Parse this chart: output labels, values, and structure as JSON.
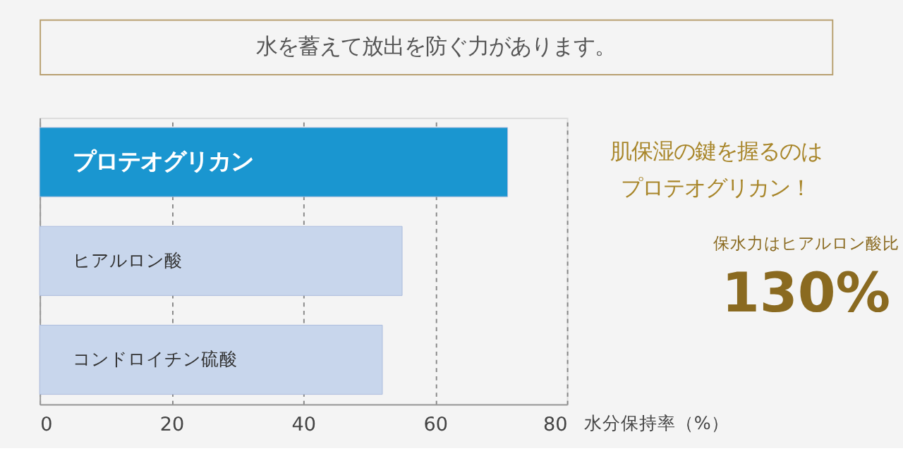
{
  "chart_data": {
    "type": "bar",
    "orientation": "horizontal",
    "title": "水を蓄えて放出を防ぐ力があります。",
    "xlabel": "水分保持率（%）",
    "categories": [
      "プロテオグリカン",
      "ヒアルロン酸",
      "コンドロイチン硫酸"
    ],
    "values": [
      71,
      55,
      52
    ],
    "colors": [
      "#1a96d0",
      "#c8d6ec",
      "#c8d6ec"
    ],
    "xlim": [
      0,
      80
    ],
    "xticks": [
      0,
      20,
      40,
      60,
      80
    ],
    "grid": "x",
    "annotations": [
      "肌保湿の鍵を握るのは",
      "プロテオグリカン！",
      "保水力はヒアルロン酸比",
      "130%"
    ]
  }
}
